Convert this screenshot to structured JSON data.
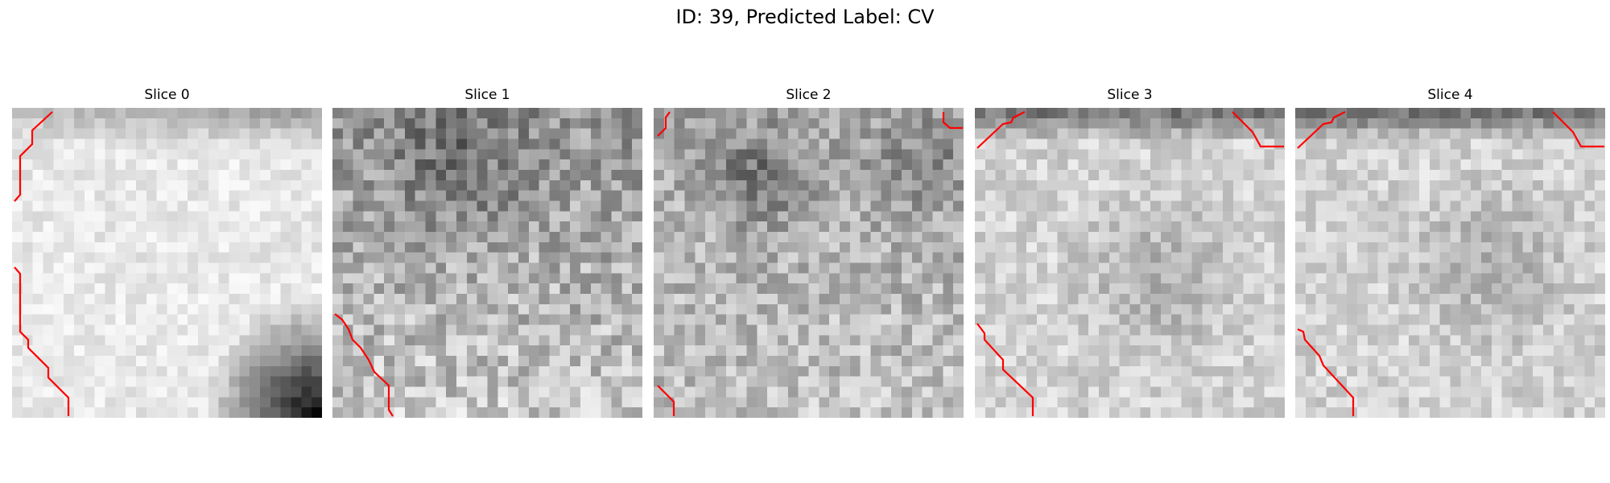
{
  "figure": {
    "title": "ID: 39, Predicted Label: CV"
  },
  "colors": {
    "background": "#ffffff",
    "contour": "#ff0000"
  },
  "slices": [
    {
      "title": "Slice 0"
    },
    {
      "title": "Slice 1"
    },
    {
      "title": "Slice 2"
    },
    {
      "title": "Slice 3"
    },
    {
      "title": "Slice 4"
    }
  ]
}
